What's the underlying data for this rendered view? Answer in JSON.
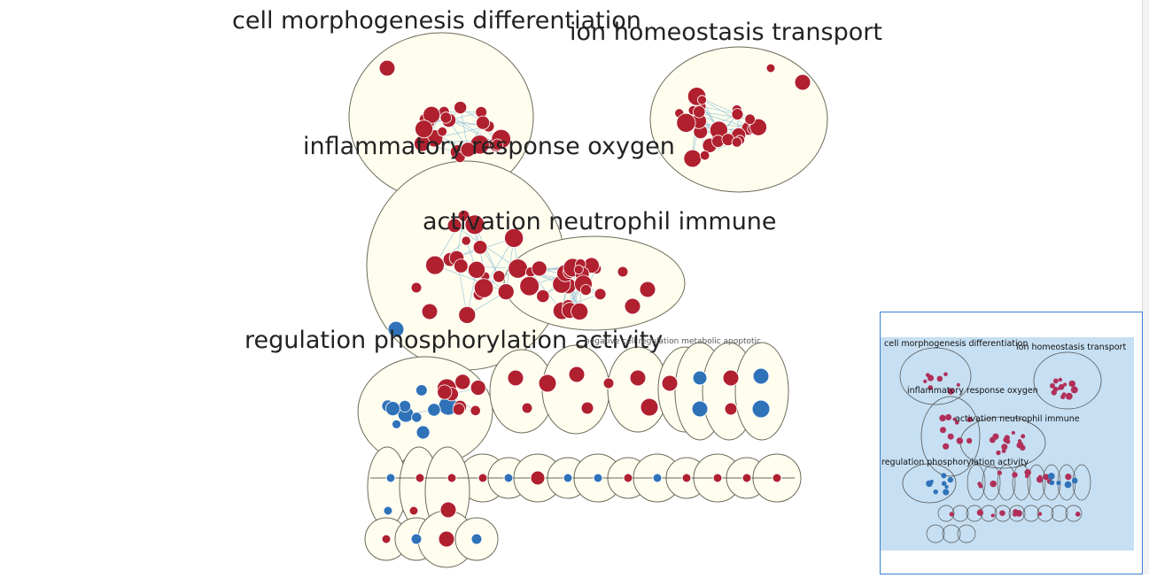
{
  "colors": {
    "cluster_fill": "#fffdee",
    "cluster_stroke": "#6b6b5a",
    "node_red": "#b0202e",
    "node_blue": "#2f72b8",
    "edge": "#9ec8d8",
    "minimap_bg": "#c6dff2",
    "minimap_border": "#3b7fd0"
  },
  "clusters": {
    "cell_morphogenesis": "cell morphogenesis differentiation",
    "ion_homeostasis": "ion homeostasis transport",
    "inflammatory": "inflammatory response oxygen",
    "activation": "activation neutrophil immune",
    "regulation": "regulation phosphorylation activity",
    "small_row_labels": "negative cell regulation metabolic apoptotic"
  },
  "minimap": {
    "cell_morphogenesis": "cell morphogenesis differentiation",
    "ion_homeostasis": "ion homeostasis transport",
    "inflammatory": "inflammatory response oxygen",
    "activation": "activation neutrophil immune",
    "regulation": "regulation phosphorylation activity"
  }
}
